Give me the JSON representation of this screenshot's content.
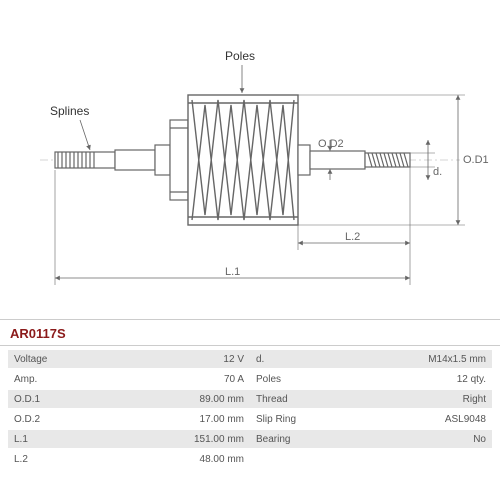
{
  "part_number": "AR0117S",
  "diagram": {
    "callouts": {
      "splines": "Splines",
      "poles": "Poles"
    },
    "dims": {
      "od1": "O.D1",
      "od2": "O.D2",
      "l1": "L.1",
      "l2": "L.2",
      "d": "d."
    },
    "colors": {
      "stroke": "#666666",
      "dimline": "#666666",
      "fill": "#ffffff"
    }
  },
  "specs_left": [
    {
      "label": "Voltage",
      "value": "12 V"
    },
    {
      "label": "Amp.",
      "value": "70 A"
    },
    {
      "label": "O.D.1",
      "value": "89.00 mm"
    },
    {
      "label": "O.D.2",
      "value": "17.00 mm"
    },
    {
      "label": "L.1",
      "value": "151.00 mm"
    },
    {
      "label": "L.2",
      "value": "48.00 mm"
    }
  ],
  "specs_right": [
    {
      "label": "d.",
      "value": "M14x1.5 mm"
    },
    {
      "label": "Poles",
      "value": "12 qty."
    },
    {
      "label": "Thread",
      "value": "Right"
    },
    {
      "label": "Slip Ring",
      "value": "ASL9048"
    },
    {
      "label": "Bearing",
      "value": "No"
    }
  ]
}
